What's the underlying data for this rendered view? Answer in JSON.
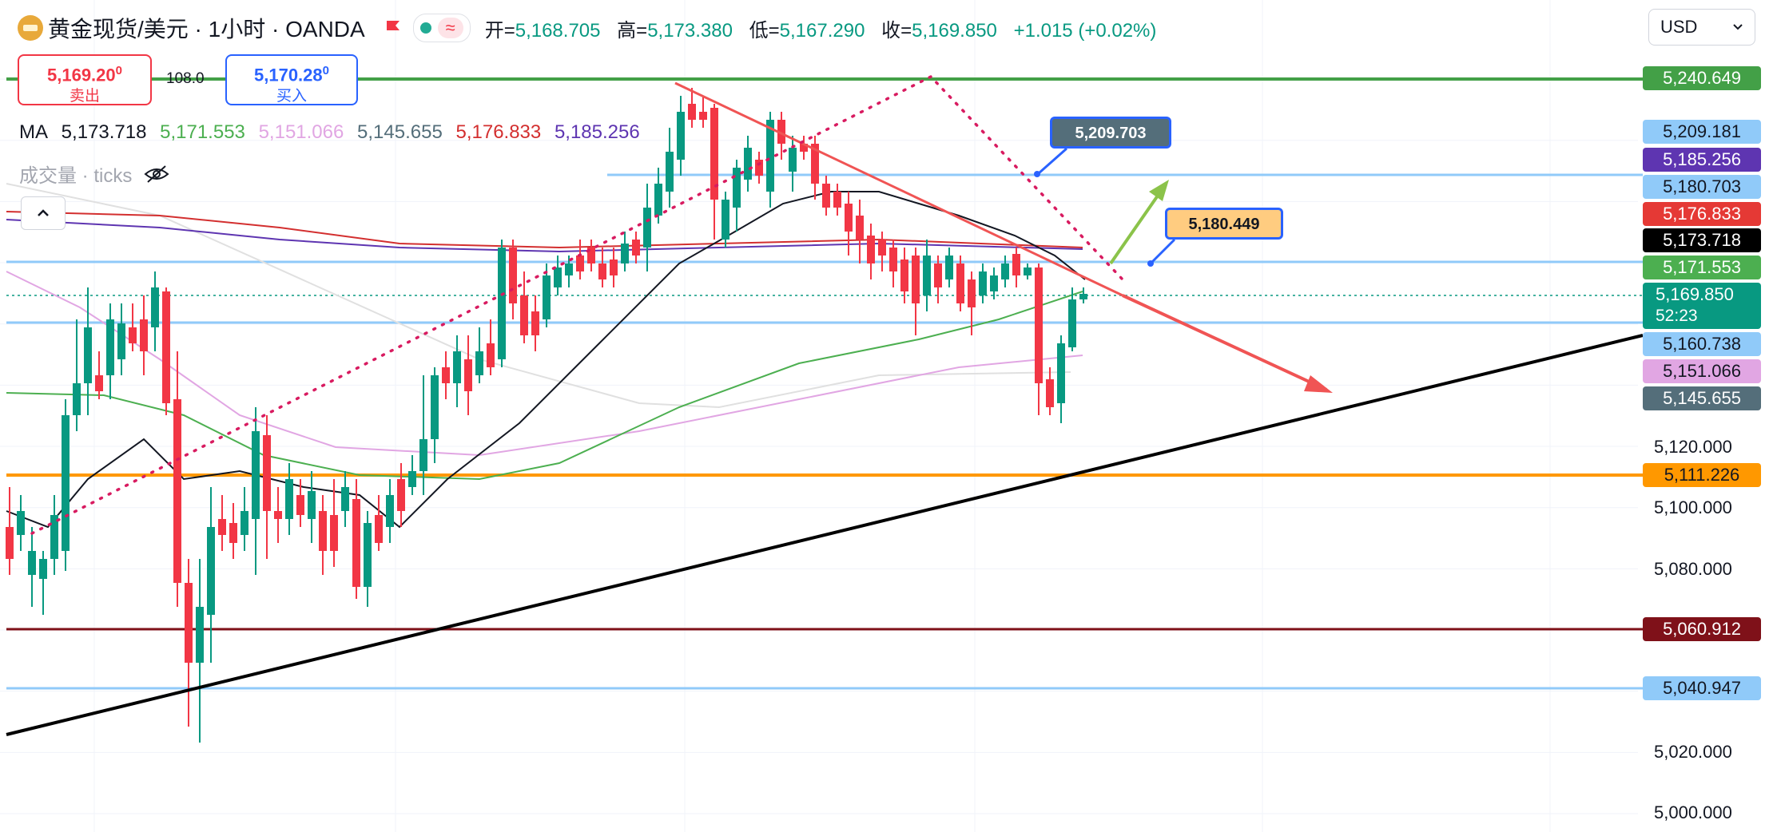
{
  "header": {
    "title": "黄金现货/美元 · 1小时 · OANDA",
    "ohlc": [
      {
        "label": "开=",
        "value": "5,168.705"
      },
      {
        "label": "高=",
        "value": "5,173.380"
      },
      {
        "label": "低=",
        "value": "5,167.290"
      },
      {
        "label": "收=",
        "value": "5,169.850"
      }
    ],
    "change": "+1.015 (+0.02%)",
    "currency": "USD"
  },
  "trade": {
    "sell_price": "5,169.20",
    "sell_price_sup": "0",
    "sell_label": "卖出",
    "spread": "108.0",
    "buy_price": "5,170.28",
    "buy_price_sup": "0",
    "buy_label": "买入"
  },
  "indicators": {
    "ma_label": "MA",
    "ma_values": [
      {
        "value": "5,173.718",
        "color": "#131722"
      },
      {
        "value": "5,171.553",
        "color": "#4caf50"
      },
      {
        "value": "5,151.066",
        "color": "#e1a6e3"
      },
      {
        "value": "5,145.655",
        "color": "#546e7a"
      },
      {
        "value": "5,176.833",
        "color": "#d32f2f"
      },
      {
        "value": "5,185.256",
        "color": "#5e35b1"
      }
    ],
    "volume_label": "成交量 · ticks"
  },
  "price_axis": {
    "ticks": [
      "5,120.000",
      "5,100.000",
      "5,080.000",
      "5,020.000",
      "5,000.000"
    ],
    "tags": [
      {
        "value": "5,240.649",
        "bg": "#43a047",
        "fg": "#ffffff"
      },
      {
        "value": "5,209.181",
        "bg": "#90caf9",
        "fg": "#131722"
      },
      {
        "value": "5,185.256",
        "bg": "#5e35b1",
        "fg": "#ffffff"
      },
      {
        "value": "5,180.703",
        "bg": "#90caf9",
        "fg": "#131722"
      },
      {
        "value": "5,176.833",
        "bg": "#e53935",
        "fg": "#ffffff"
      },
      {
        "value": "5,173.718",
        "bg": "#000000",
        "fg": "#ffffff"
      },
      {
        "value": "5,171.553",
        "bg": "#4caf50",
        "fg": "#ffffff"
      },
      {
        "value": "5,160.738",
        "bg": "#90caf9",
        "fg": "#131722"
      },
      {
        "value": "5,151.066",
        "bg": "#e1a6e3",
        "fg": "#131722"
      },
      {
        "value": "5,145.655",
        "bg": "#546e7a",
        "fg": "#ffffff"
      },
      {
        "value": "5,111.226",
        "bg": "#ff9800",
        "fg": "#131722"
      },
      {
        "value": "5,060.912",
        "bg": "#7f1119",
        "fg": "#ffffff"
      },
      {
        "value": "5,040.947",
        "bg": "#90caf9",
        "fg": "#131722"
      }
    ],
    "last_price": "5,169.850",
    "countdown": "52:23",
    "last_price_color": "#089981"
  },
  "callouts": [
    {
      "value": "5,209.703",
      "bg": "#546e7a",
      "fg": "#ffffff",
      "border": "#2962ff"
    },
    {
      "value": "5,180.449",
      "bg": "#ffcc80",
      "fg": "#131722",
      "border": "#2962ff"
    }
  ],
  "colors": {
    "up": "#089981",
    "down": "#f23645",
    "accent": "#2962ff"
  }
}
